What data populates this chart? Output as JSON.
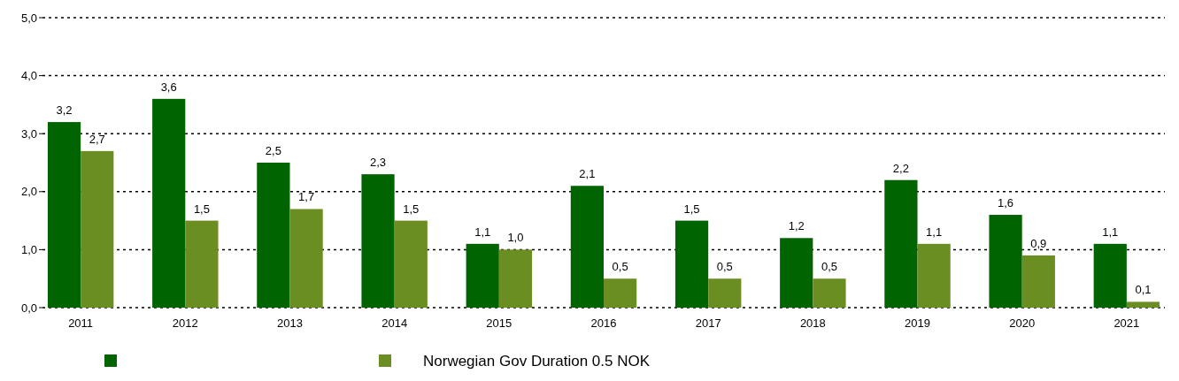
{
  "chart_data": {
    "type": "bar",
    "categories": [
      "2011",
      "2012",
      "2013",
      "2014",
      "2015",
      "2016",
      "2017",
      "2018",
      "2019",
      "2020",
      "2021"
    ],
    "series": [
      {
        "color": "#006400",
        "values": [
          3.2,
          3.6,
          2.5,
          2.3,
          1.1,
          2.1,
          1.5,
          1.2,
          2.2,
          1.6,
          1.1
        ],
        "value_labels": [
          "3,2",
          "3,6",
          "2,5",
          "2,3",
          "1,1",
          "2,1",
          "1,5",
          "1,2",
          "2,2",
          "1,6",
          "1,1"
        ]
      },
      {
        "name": "Norwegian Gov Duration 0.5 NOK",
        "color": "#6b8e23",
        "values": [
          2.7,
          1.5,
          1.7,
          1.5,
          1.0,
          0.5,
          0.5,
          0.5,
          1.1,
          0.9,
          0.1
        ],
        "value_labels": [
          "2,7",
          "1,5",
          "1,7",
          "1,5",
          "1,0",
          "0,5",
          "0,5",
          "0,5",
          "1,1",
          "0,9",
          "0,1"
        ]
      }
    ],
    "ylim": [
      0,
      5
    ],
    "yticks": [
      {
        "value": 0,
        "label": "0,0"
      },
      {
        "value": 1,
        "label": "1,0"
      },
      {
        "value": 2,
        "label": "2,0"
      },
      {
        "value": 3,
        "label": "3,0"
      },
      {
        "value": 4,
        "label": "4,0"
      },
      {
        "value": 5,
        "label": "5,0"
      }
    ],
    "grid": "y",
    "legend": "bottom"
  }
}
